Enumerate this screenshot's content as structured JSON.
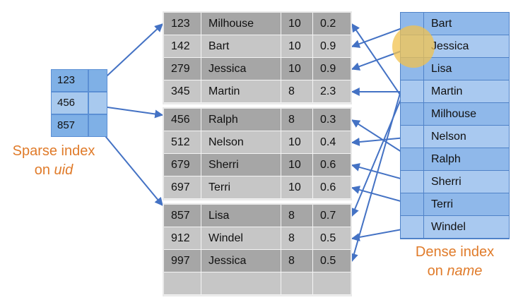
{
  "colors": {
    "arrow": "#4472c4",
    "caption": "#e07b2a",
    "sparse_cell": "#7fb0e6",
    "sparse_cell_alt": "#a8c9ee",
    "dense_row": "#8fb8ea",
    "dense_row_alt": "#a9c9f0",
    "data_row_dark": "#a6a6a6",
    "data_row_light": "#c6c6c6",
    "highlight": "#f2c14e"
  },
  "sparse_index": {
    "keys": [
      "123",
      "456",
      "857"
    ],
    "caption_line1": "Sparse index",
    "caption_line2_prefix": "on ",
    "caption_line2_field": "uid"
  },
  "blocks": [
    {
      "rows": [
        {
          "uid": "123",
          "name": "Milhouse",
          "age": "10",
          "gpa": "0.2"
        },
        {
          "uid": "142",
          "name": "Bart",
          "age": "10",
          "gpa": "0.9"
        },
        {
          "uid": "279",
          "name": "Jessica",
          "age": "10",
          "gpa": "0.9"
        },
        {
          "uid": "345",
          "name": "Martin",
          "age": "8",
          "gpa": "2.3"
        }
      ]
    },
    {
      "rows": [
        {
          "uid": "456",
          "name": "Ralph",
          "age": "8",
          "gpa": "0.3"
        },
        {
          "uid": "512",
          "name": "Nelson",
          "age": "10",
          "gpa": "0.4"
        },
        {
          "uid": "679",
          "name": "Sherri",
          "age": "10",
          "gpa": "0.6"
        },
        {
          "uid": "697",
          "name": "Terri",
          "age": "10",
          "gpa": "0.6"
        }
      ]
    },
    {
      "rows": [
        {
          "uid": "857",
          "name": "Lisa",
          "age": "8",
          "gpa": "0.7"
        },
        {
          "uid": "912",
          "name": "Windel",
          "age": "8",
          "gpa": "0.5"
        },
        {
          "uid": "997",
          "name": "Jessica",
          "age": "8",
          "gpa": "0.5"
        },
        {
          "uid": "",
          "name": "",
          "age": "",
          "gpa": ""
        }
      ]
    }
  ],
  "dense_index": {
    "names": [
      "Bart",
      "Jessica",
      "Lisa",
      "Martin",
      "Milhouse",
      "Nelson",
      "Ralph",
      "Sherri",
      "Terri",
      "Windel"
    ],
    "caption_line1": "Dense index",
    "caption_line2_prefix": "on ",
    "caption_line2_field": "name"
  }
}
